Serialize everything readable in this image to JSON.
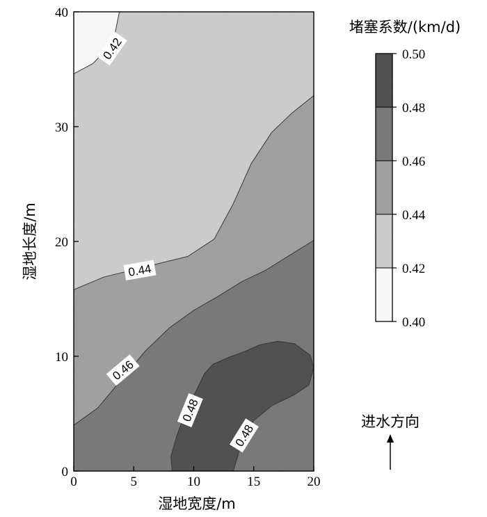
{
  "chart_data": {
    "type": "contour",
    "xlabel": "湿地宽度/m",
    "ylabel": "湿地长度/m",
    "xlim": [
      0,
      20
    ],
    "ylim": [
      0,
      40
    ],
    "x_ticks": [
      "0",
      "5",
      "10",
      "15",
      "20"
    ],
    "y_ticks": [
      "0",
      "10",
      "20",
      "30",
      "40"
    ],
    "colorbar": {
      "title": "堵塞系数/(km/d)",
      "levels": [
        "0.40",
        "0.42",
        "0.44",
        "0.46",
        "0.48",
        "0.50"
      ],
      "colors": [
        "#ffffff",
        "#d2d2d2",
        "#a6a6a6",
        "#7e7e7e",
        "#555555"
      ]
    },
    "contour_labels": [
      {
        "text": "0.42",
        "x": 3.2,
        "y": 36.8,
        "angle": -55
      },
      {
        "text": "0.44",
        "x": 5.5,
        "y": 17.5,
        "angle": -10
      },
      {
        "text": "0.46",
        "x": 4.1,
        "y": 8.8,
        "angle": -40
      },
      {
        "text": "0.48",
        "x": 9.7,
        "y": 5.3,
        "angle": -68
      },
      {
        "text": "0.48",
        "x": 14.2,
        "y": 3.1,
        "angle": -58
      }
    ],
    "regions": [
      {
        "value_range": [
          "0.40",
          "0.42"
        ],
        "color_index": 0,
        "points": [
          [
            0,
            40
          ],
          [
            3.8,
            40
          ],
          [
            3.4,
            37.9
          ],
          [
            2.7,
            36.7
          ],
          [
            1.6,
            35.5
          ],
          [
            0,
            34.6
          ]
        ]
      },
      {
        "value_range": [
          "0.44",
          "0.46"
        ],
        "color_index": 2,
        "points": [
          [
            0,
            15.8
          ],
          [
            2.5,
            16.9
          ],
          [
            6,
            17.8
          ],
          [
            9.5,
            18.7
          ],
          [
            11.7,
            20.2
          ],
          [
            13.3,
            23.3
          ],
          [
            14.8,
            26.8
          ],
          [
            16.5,
            29.5
          ],
          [
            18.2,
            31.2
          ],
          [
            20,
            32.7
          ],
          [
            20,
            0
          ],
          [
            0,
            0
          ]
        ]
      },
      {
        "value_range": [
          "0.46",
          "0.48"
        ],
        "color_index": 3,
        "points": [
          [
            0,
            4
          ],
          [
            2,
            5.5
          ],
          [
            4,
            8
          ],
          [
            6,
            10.5
          ],
          [
            8,
            12.5
          ],
          [
            10,
            14
          ],
          [
            12,
            15.2
          ],
          [
            14,
            16.5
          ],
          [
            16,
            17.5
          ],
          [
            18,
            18.8
          ],
          [
            20,
            20.1
          ],
          [
            20,
            0
          ],
          [
            0,
            0
          ]
        ]
      },
      {
        "value_range": [
          "0.48",
          "0.50"
        ],
        "color_index": 4,
        "points": [
          [
            8.2,
            0
          ],
          [
            8.1,
            1.3
          ],
          [
            8.6,
            3.1
          ],
          [
            9.3,
            5.1
          ],
          [
            10.2,
            7
          ],
          [
            10.9,
            8.5
          ],
          [
            11.6,
            9.3
          ],
          [
            12.9,
            9.9
          ],
          [
            14.2,
            10.4
          ],
          [
            15.5,
            11
          ],
          [
            17,
            11.3
          ],
          [
            18.4,
            11.1
          ],
          [
            19.7,
            10.1
          ],
          [
            20,
            9
          ],
          [
            19.6,
            7.5
          ],
          [
            18.3,
            6.6
          ],
          [
            16.5,
            5.7
          ],
          [
            15,
            4.4
          ],
          [
            14,
            2.5
          ],
          [
            13.3,
            0
          ]
        ]
      }
    ],
    "annotation": {
      "text": "进水方向",
      "arrow": "up"
    }
  }
}
